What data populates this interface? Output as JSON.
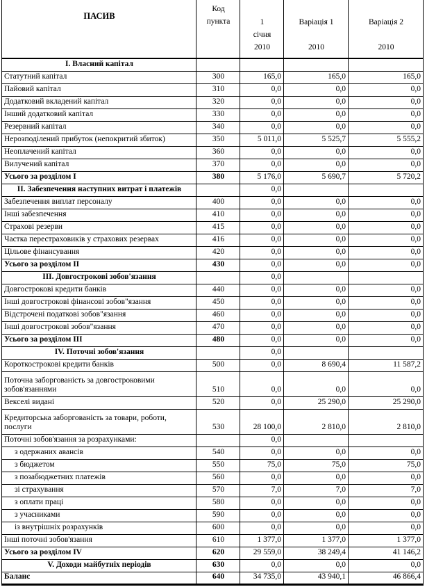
{
  "colors": {
    "background": "#ffffff",
    "text": "#000000",
    "border": "#000000"
  },
  "table": {
    "header": {
      "title": "ПАСИВ",
      "code_lines": [
        "Код",
        "пункта"
      ],
      "jan_lines": [
        "1",
        "січня",
        "2010"
      ],
      "var1_lines": [
        "Варіація 1",
        "2010"
      ],
      "var2_lines": [
        "Варіація 2",
        "2010"
      ]
    },
    "rows": [
      {
        "style": "section",
        "label": "I. Власний капітал",
        "code": "",
        "v1": "",
        "v2": "",
        "v3": ""
      },
      {
        "style": "item",
        "label": "Статутний капітал",
        "code": "300",
        "v1": "165,0",
        "v2": "165,0",
        "v3": "165,0"
      },
      {
        "style": "item",
        "label": "Пайовий капітал",
        "code": "310",
        "v1": "0,0",
        "v2": "0,0",
        "v3": "0,0"
      },
      {
        "style": "item",
        "label": "Додатковий вкладений капітал",
        "code": "320",
        "v1": "0,0",
        "v2": "0,0",
        "v3": "0,0"
      },
      {
        "style": "item",
        "label": "Інший додатковий капітал",
        "code": "330",
        "v1": "0,0",
        "v2": "0,0",
        "v3": "0,0"
      },
      {
        "style": "item",
        "label": "Резервний капітал",
        "code": "340",
        "v1": "0,0",
        "v2": "0,0",
        "v3": "0,0"
      },
      {
        "style": "item",
        "label": "Нерозподілений прибуток (непокритий збиток)",
        "code": "350",
        "v1": "5 011,0",
        "v2": "5 525,7",
        "v3": "5 555,2"
      },
      {
        "style": "item",
        "label": "Неоплачений капітал",
        "code": "360",
        "v1": "0,0",
        "v2": "0,0",
        "v3": "0,0"
      },
      {
        "style": "item",
        "label": "Вилучений капітал",
        "code": "370",
        "v1": "0,0",
        "v2": "0,0",
        "v3": "0,0"
      },
      {
        "style": "total",
        "label": "Усього за розділом I",
        "code": "380",
        "v1": "5 176,0",
        "v2": "5 690,7",
        "v3": "5 720,2"
      },
      {
        "style": "section",
        "label": "II. Забезпечення наступних витрат і платежів",
        "code": "",
        "v1": "0,0",
        "v2": "",
        "v3": ""
      },
      {
        "style": "item",
        "label": "Забезпечення виплат персоналу",
        "code": "400",
        "v1": "0,0",
        "v2": "0,0",
        "v3": "0,0"
      },
      {
        "style": "item",
        "label": "Інші забезпечення",
        "code": "410",
        "v1": "0,0",
        "v2": "0,0",
        "v3": "0,0"
      },
      {
        "style": "item",
        "label": "Страхові резерви",
        "code": "415",
        "v1": "0,0",
        "v2": "0,0",
        "v3": "0,0"
      },
      {
        "style": "item",
        "label": "Частка перестраховиків у страхових резервах",
        "code": "416",
        "v1": "0,0",
        "v2": "0,0",
        "v3": "0,0"
      },
      {
        "style": "item",
        "label": "Цільове фінансування",
        "code": "420",
        "v1": "0,0",
        "v2": "0,0",
        "v3": "0,0"
      },
      {
        "style": "total",
        "label": "Усього за розділом II",
        "code": "430",
        "v1": "0,0",
        "v2": "0,0",
        "v3": "0,0"
      },
      {
        "style": "section",
        "label": "III. Довгострокові зобов'язання",
        "code": "",
        "v1": "0,0",
        "v2": "",
        "v3": ""
      },
      {
        "style": "item",
        "label": "Довгострокові кредити банків",
        "code": "440",
        "v1": "0,0",
        "v2": "0,0",
        "v3": "0,0"
      },
      {
        "style": "item",
        "label": "Інші довгострокові фінансові зобов\"язання",
        "code": "450",
        "v1": "0,0",
        "v2": "0,0",
        "v3": "0,0"
      },
      {
        "style": "item",
        "label": "Відстрочені податкові зобов\"язання",
        "code": "460",
        "v1": "0,0",
        "v2": "0,0",
        "v3": "0,0"
      },
      {
        "style": "item",
        "label": "Інші довгострокові зобов\"язання",
        "code": "470",
        "v1": "0,0",
        "v2": "0,0",
        "v3": "0,0"
      },
      {
        "style": "total",
        "label": "Усього за розділом III",
        "code": "480",
        "v1": "0,0",
        "v2": "0,0",
        "v3": "0,0"
      },
      {
        "style": "section",
        "label": "IV. Поточні зобов'язання",
        "code": "",
        "v1": "0,0",
        "v2": "",
        "v3": ""
      },
      {
        "style": "item",
        "label": "Короткострокові кредити банків",
        "code": "500",
        "v1": "0,0",
        "v2": "8 690,4",
        "v3": "11 587,2"
      },
      {
        "style": "tall",
        "label": "Поточна заборгованість за довгостроковими зобов'язаннями",
        "code": "510",
        "v1": "0,0",
        "v2": "0,0",
        "v3": "0,0"
      },
      {
        "style": "item",
        "label": "Векселі видані",
        "code": "520",
        "v1": "0,0",
        "v2": "25 290,0",
        "v3": "25 290,0"
      },
      {
        "style": "tall",
        "label": "Кредиторська заборгованість за товари, роботи, послуги",
        "code": "530",
        "v1": "28 100,0",
        "v2": "2 810,0",
        "v3": "2 810,0"
      },
      {
        "style": "group",
        "label": "Поточні зобов'язання за розрахунками:",
        "code": "",
        "v1": "0,0",
        "v2": "",
        "v3": ""
      },
      {
        "style": "sub",
        "label": "з одержаних авансів",
        "code": "540",
        "v1": "0,0",
        "v2": "0,0",
        "v3": "0,0"
      },
      {
        "style": "sub",
        "label": "з бюджетом",
        "code": "550",
        "v1": "75,0",
        "v2": "75,0",
        "v3": "75,0"
      },
      {
        "style": "sub",
        "label": "з позабюджетних платежів",
        "code": "560",
        "v1": "0,0",
        "v2": "0,0",
        "v3": "0,0"
      },
      {
        "style": "sub",
        "label": "зі страхування",
        "code": "570",
        "v1": "7,0",
        "v2": "7,0",
        "v3": "7,0"
      },
      {
        "style": "sub",
        "label": "з оплати праці",
        "code": "580",
        "v1": "0,0",
        "v2": "0,0",
        "v3": "0,0"
      },
      {
        "style": "sub",
        "label": "з учасниками",
        "code": "590",
        "v1": "0,0",
        "v2": "0,0",
        "v3": "0,0"
      },
      {
        "style": "sub",
        "label": "із внутрішніх розрахунків",
        "code": "600",
        "v1": "0,0",
        "v2": "0,0",
        "v3": "0,0"
      },
      {
        "style": "item",
        "label": "Інші поточні зобов'язання",
        "code": "610",
        "v1": "1 377,0",
        "v2": "1 377,0",
        "v3": "1 377,0"
      },
      {
        "style": "total",
        "label": "Усього за розділом IV",
        "code": "620",
        "v1": "29 559,0",
        "v2": "38 249,4",
        "v3": "41 146,2"
      },
      {
        "style": "section",
        "label": "V. Доходи майбутніх періодів",
        "code": "630",
        "v1": "0,0",
        "v2": "0,0",
        "v3": "0,0"
      },
      {
        "style": "total",
        "label": "Баланс",
        "code": "640",
        "v1": "34 735,0",
        "v2": "43 940,1",
        "v3": "46 866,4"
      }
    ]
  }
}
